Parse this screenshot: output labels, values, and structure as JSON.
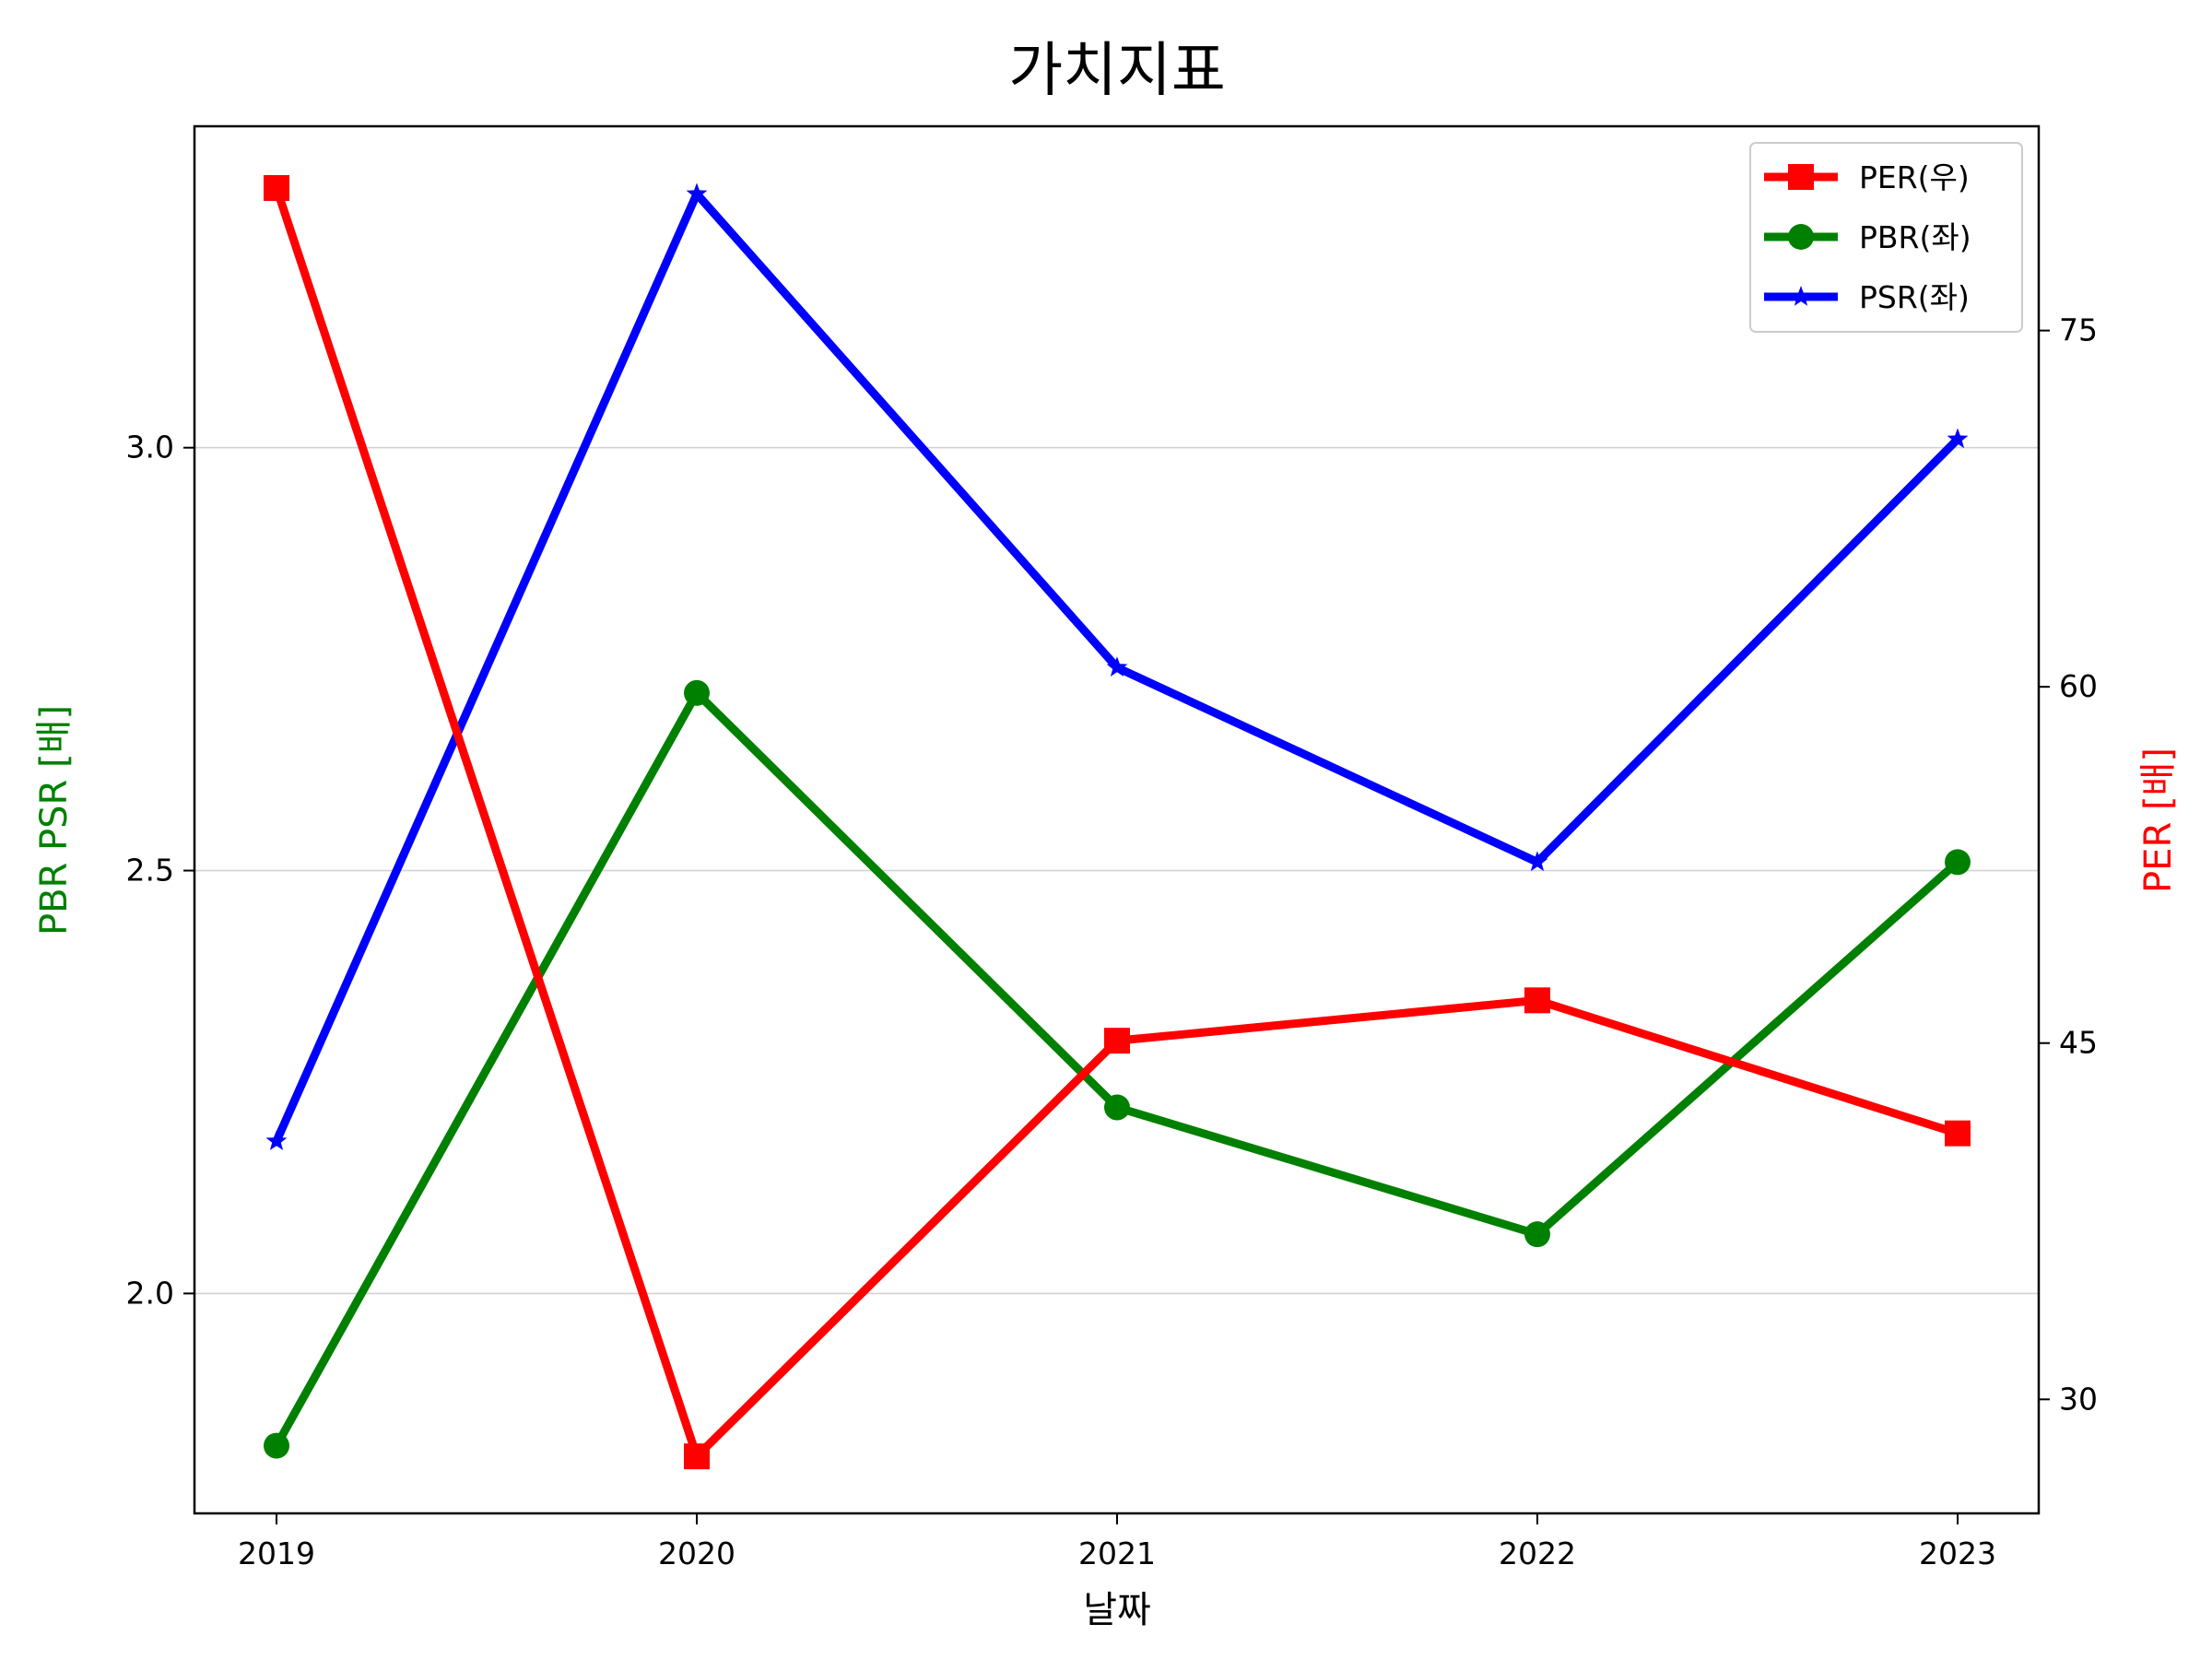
{
  "chart_data": {
    "type": "line",
    "title": "가치지표",
    "xlabel": "날짜",
    "ylabel_left": "PBR PSR [배]",
    "ylabel_right": "PER [배]",
    "categories": [
      "2019",
      "2020",
      "2021",
      "2022",
      "2023"
    ],
    "left_axis": {
      "ylim": [
        1.74,
        3.38
      ],
      "ticks": [
        2.0,
        2.5,
        3.0
      ],
      "tick_labels": [
        "2.0",
        "2.5",
        "3.0"
      ]
    },
    "right_axis": {
      "ylim": [
        25.2,
        83.6
      ],
      "ticks": [
        30,
        45,
        60,
        75
      ],
      "tick_labels": [
        "30",
        "45",
        "60",
        "75"
      ]
    },
    "grid": "horizontal-left",
    "legend_position": "top-right",
    "series": [
      {
        "name": "PER(우)",
        "axis": "right",
        "color": "#ff0000",
        "marker": "square",
        "values": [
          81.0,
          27.6,
          45.1,
          46.8,
          41.2
        ]
      },
      {
        "name": "PBR(좌)",
        "axis": "left",
        "color": "#008000",
        "marker": "circle",
        "values": [
          1.82,
          2.71,
          2.22,
          2.07,
          2.51
        ]
      },
      {
        "name": "PSR(좌)",
        "axis": "left",
        "color": "#0000ff",
        "marker": "star",
        "values": [
          2.18,
          3.3,
          2.74,
          2.51,
          3.01
        ]
      }
    ]
  }
}
